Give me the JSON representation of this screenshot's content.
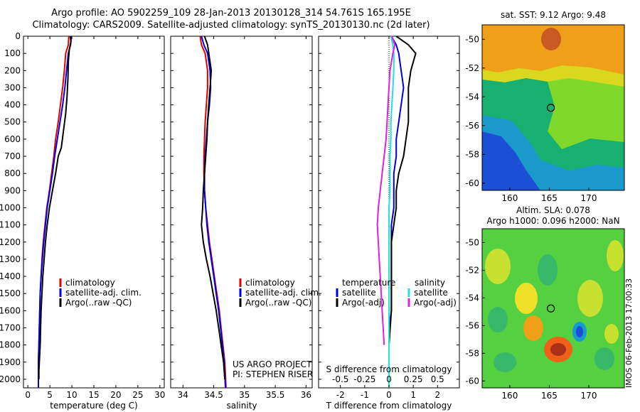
{
  "figure": {
    "title_line1": "Argo profile: AO 5902259_109 28-Jan-2013 20130128_314 54.761S 165.195E",
    "title_line2": "Climatology: CARS2009. Satellite-adjusted climatology: synTS_20130130.nc (2d later)",
    "timestamp": "IMOS 06-Feb-2013 17:00:33",
    "credit_line1": "US ARGO PROJECT",
    "credit_line2": "PI: STEPHEN RISER",
    "colors": {
      "climatology": "#e00000",
      "satellite": "#0000e6",
      "argo": "#000000",
      "salinity_satellite": "#22e0e0",
      "salinity_argo": "#e020e0"
    }
  },
  "chart_data": [
    {
      "id": "temperature",
      "type": "line",
      "xlabel": "temperature (deg C)",
      "ylabel": "",
      "xlim": [
        -1,
        31
      ],
      "ylim": [
        2050,
        0
      ],
      "xticks": [
        "0",
        "5",
        "10",
        "15",
        "20",
        "25",
        "30"
      ],
      "yticks": [
        "0",
        "100",
        "200",
        "300",
        "400",
        "500",
        "600",
        "700",
        "800",
        "900",
        "1000",
        "1100",
        "1200",
        "1300",
        "1400",
        "1500",
        "1600",
        "1700",
        "1800",
        "1900",
        "2000"
      ],
      "legend": [
        "climatology",
        "satellite-adj. clim.",
        "Argo(..raw -QC)"
      ],
      "series": [
        {
          "name": "climatology",
          "color": "#e00000",
          "x": [
            9.3,
            9.2,
            8.6,
            8.3,
            7.9,
            7.4,
            6.9,
            6.3,
            5.9,
            5.4,
            4.9,
            4.3,
            3.9,
            3.5,
            3.2,
            3.0,
            2.8,
            2.7,
            2.6,
            2.5,
            2.4,
            2.4
          ],
          "y": [
            0,
            50,
            100,
            200,
            300,
            400,
            500,
            600,
            700,
            800,
            900,
            1000,
            1100,
            1200,
            1300,
            1400,
            1500,
            1600,
            1700,
            1800,
            1900,
            2050
          ]
        },
        {
          "name": "satellite-adj. clim.",
          "color": "#0000e6",
          "x": [
            9.9,
            9.7,
            9.2,
            8.8,
            8.4,
            7.9,
            7.3,
            6.7,
            6.1,
            5.6,
            5.0,
            4.4,
            4.0,
            3.6,
            3.3,
            3.0,
            2.8,
            2.7,
            2.6,
            2.5,
            2.4,
            2.4
          ],
          "y": [
            0,
            50,
            100,
            200,
            300,
            400,
            500,
            600,
            700,
            800,
            900,
            1000,
            1100,
            1200,
            1300,
            1400,
            1500,
            1600,
            1700,
            1800,
            1900,
            2050
          ]
        },
        {
          "name": "Argo(..raw -QC)",
          "color": "#000000",
          "x": [
            9.6,
            9.8,
            9.4,
            9.2,
            9.1,
            8.9,
            8.6,
            8.1,
            7.6,
            6.9,
            6.3,
            5.6,
            4.9,
            4.4,
            4.0,
            3.7,
            3.4,
            3.2,
            3.0,
            2.9,
            2.8,
            2.7,
            2.6,
            2.5,
            2.5
          ],
          "y": [
            0,
            30,
            80,
            150,
            250,
            350,
            450,
            550,
            650,
            700,
            800,
            900,
            1000,
            1100,
            1200,
            1300,
            1400,
            1500,
            1600,
            1700,
            1800,
            1850,
            1900,
            1950,
            2000
          ]
        }
      ]
    },
    {
      "id": "salinity",
      "type": "line",
      "xlabel": "salinity",
      "ylabel": "",
      "xlim": [
        33.8,
        36.1
      ],
      "ylim": [
        2050,
        0
      ],
      "xticks": [
        "34",
        "34.5",
        "35",
        "35.5",
        "36"
      ],
      "legend": [
        "climatology",
        "satellite-adj. clim.",
        "Argo(..raw -QC)"
      ],
      "series": [
        {
          "name": "climatology",
          "color": "#e00000",
          "x": [
            34.28,
            34.3,
            34.36,
            34.4,
            34.4,
            34.38,
            34.36,
            34.35,
            34.34,
            34.34,
            34.35,
            34.37,
            34.4,
            34.43,
            34.47,
            34.51,
            34.55,
            34.59,
            34.62,
            34.65,
            34.68,
            34.7
          ],
          "y": [
            0,
            50,
            100,
            200,
            300,
            400,
            500,
            600,
            700,
            800,
            900,
            1000,
            1100,
            1200,
            1300,
            1400,
            1500,
            1600,
            1700,
            1800,
            1900,
            2050
          ]
        },
        {
          "name": "satellite-adj. clim.",
          "color": "#0000e6",
          "x": [
            34.3,
            34.34,
            34.4,
            34.44,
            34.45,
            34.43,
            34.4,
            34.38,
            34.36,
            34.35,
            34.35,
            34.37,
            34.39,
            34.42,
            34.46,
            34.5,
            34.54,
            34.58,
            34.61,
            34.64,
            34.67,
            34.69
          ],
          "y": [
            0,
            50,
            100,
            200,
            300,
            400,
            500,
            600,
            700,
            800,
            900,
            1000,
            1100,
            1200,
            1300,
            1400,
            1500,
            1600,
            1700,
            1800,
            1900,
            2050
          ]
        },
        {
          "name": "Argo(..raw -QC)",
          "color": "#000000",
          "x": [
            34.35,
            34.4,
            34.42,
            34.46,
            34.44,
            34.42,
            34.4,
            34.39,
            34.37,
            34.35,
            34.33,
            34.32,
            34.3,
            34.33,
            34.38,
            34.44,
            34.49,
            34.54,
            34.58,
            34.62,
            34.66,
            34.68
          ],
          "y": [
            0,
            50,
            100,
            200,
            300,
            400,
            500,
            600,
            700,
            800,
            900,
            1000,
            1100,
            1200,
            1300,
            1400,
            1500,
            1600,
            1700,
            1800,
            1900,
            2000
          ]
        }
      ]
    },
    {
      "id": "difference",
      "type": "line",
      "xlabel": "T difference from climatology",
      "xlabel_top": "S difference from climatology",
      "xlim": [
        -2.9,
        2.9
      ],
      "ylim": [
        2050,
        0
      ],
      "xticks": [
        "-2",
        "-1",
        "0",
        "1",
        "2"
      ],
      "xticks_S": [
        "-0.5",
        "-0.25",
        "0",
        "0.25",
        "0.5"
      ],
      "legend_temperature_title": "temperature",
      "legend_temperature": [
        "satellite",
        "Argo(-adj)"
      ],
      "legend_salinity_title": "salinity",
      "legend_salinity": [
        "satellite",
        "Argo(-adj)"
      ],
      "series": [
        {
          "name": "satellite",
          "group": "temperature",
          "color": "#0000e6",
          "x": [
            0.1,
            0.3,
            0.4,
            0.5,
            0.6,
            0.5,
            0.4,
            0.3,
            0.3,
            0.2,
            0.2,
            0.2,
            0.1,
            0.1,
            0.1,
            0.1,
            0.1,
            0.1,
            0.0,
            0.0,
            0.0
          ],
          "y": [
            0,
            50,
            100,
            200,
            300,
            400,
            500,
            600,
            700,
            800,
            900,
            1000,
            1100,
            1200,
            1300,
            1400,
            1500,
            1600,
            1700,
            1800,
            2050
          ]
        },
        {
          "name": "Argo(-adj)",
          "group": "temperature",
          "color": "#000000",
          "x": [
            0.3,
            0.8,
            1.1,
            0.9,
            0.8,
            0.8,
            0.8,
            0.7,
            0.6,
            0.4,
            0.3,
            0.3,
            0.2,
            0.1,
            0.1,
            0.1,
            0.1,
            0.1,
            0.0,
            0.0
          ],
          "y": [
            0,
            50,
            100,
            200,
            300,
            400,
            500,
            600,
            700,
            800,
            900,
            1000,
            1100,
            1200,
            1300,
            1400,
            1500,
            1600,
            1800,
            2000
          ]
        },
        {
          "name": "satellite",
          "group": "salinity",
          "color": "#22e0e0",
          "x": [
            0.02,
            0.04,
            0.05,
            0.05,
            0.04,
            0.03,
            0.02,
            0.02,
            0.01,
            0.01,
            0.01,
            0.0,
            0.0,
            0.0,
            0.0,
            0.0,
            0.0,
            0.0,
            0.0,
            0.0
          ],
          "y": [
            0,
            50,
            100,
            200,
            300,
            400,
            500,
            600,
            700,
            800,
            900,
            1000,
            1100,
            1200,
            1300,
            1400,
            1500,
            1600,
            1800,
            2050
          ]
        },
        {
          "name": "Argo(-adj)",
          "group": "salinity",
          "color": "#e020e0",
          "x": [
            0.03,
            0.06,
            0.04,
            0.01,
            0.0,
            -0.01,
            -0.02,
            -0.03,
            -0.05,
            -0.07,
            -0.09,
            -0.11,
            -0.12,
            -0.11,
            -0.1,
            -0.09,
            -0.08,
            -0.07,
            -0.06,
            -0.05
          ],
          "y": [
            0,
            50,
            100,
            200,
            300,
            400,
            500,
            600,
            700,
            800,
            900,
            1000,
            1100,
            1200,
            1300,
            1400,
            1500,
            1600,
            1700,
            1800
          ]
        }
      ]
    },
    {
      "id": "sst_map",
      "type": "heatmap",
      "title": "sat. SST: 9.12 Argo: 9.48",
      "xlim": [
        156.5,
        174.5
      ],
      "ylim": [
        -60.5,
        -49.0
      ],
      "xticks": [
        "160",
        "165",
        "170"
      ],
      "yticks": [
        "-50",
        "-52",
        "-54",
        "-56",
        "-58",
        "-60"
      ],
      "profile_location": [
        165.195,
        -54.761
      ]
    },
    {
      "id": "sla_map",
      "type": "heatmap",
      "title_line1": "Altim. SLA: 0.078",
      "title_line2": "Argo h1000: 0.096 h2000: NaN",
      "xlim": [
        156.5,
        174.5
      ],
      "ylim": [
        -60.5,
        -49.0
      ],
      "xticks": [
        "160",
        "165",
        "170"
      ],
      "yticks": [
        "-50",
        "-52",
        "-54",
        "-56",
        "-58",
        "-60"
      ],
      "profile_location": [
        165.195,
        -54.761
      ]
    }
  ]
}
